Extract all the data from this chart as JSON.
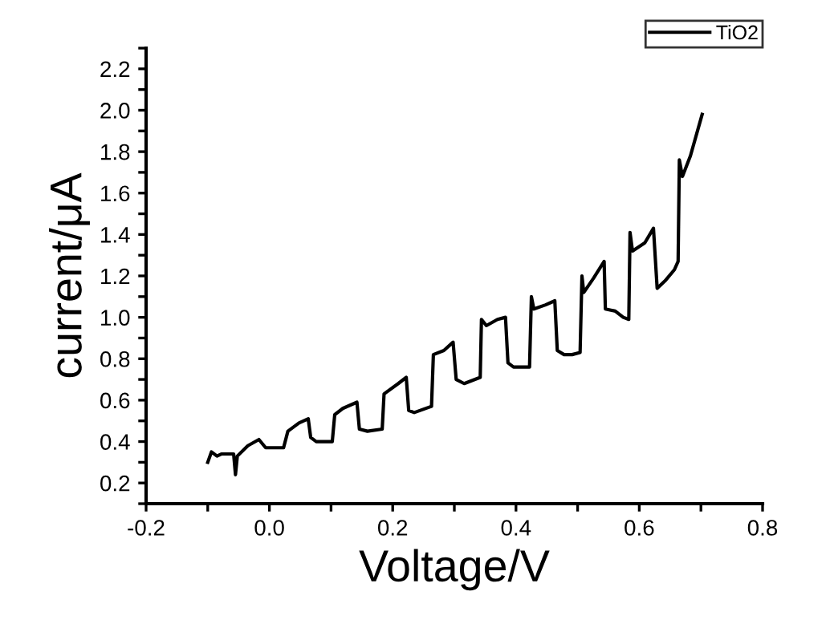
{
  "chart_data": {
    "type": "line",
    "xlabel": "Voltage/V",
    "ylabel": "current/μA",
    "xlim": [
      -0.2,
      0.8
    ],
    "ylim": [
      0.1,
      2.3
    ],
    "xticks": [
      -0.2,
      {
        "value": -0.1,
        "label": null
      },
      {
        "value": 0,
        "label": "0.0"
      },
      {
        "value": 0.1,
        "label": null
      },
      0.2,
      {
        "value": 0.3,
        "label": null
      },
      0.4,
      {
        "value": 0.5,
        "label": null
      },
      0.6,
      {
        "value": 0.7,
        "label": null
      },
      0.8
    ],
    "yticks": [
      {
        "value": 0.1,
        "label": null
      },
      0.2,
      {
        "value": 0.3,
        "label": null
      },
      0.4,
      {
        "value": 0.5,
        "label": null
      },
      0.6,
      {
        "value": 0.7,
        "label": null
      },
      0.8,
      {
        "value": 0.9,
        "label": null
      },
      {
        "value": 1,
        "label": "1.0"
      },
      {
        "value": 1.1,
        "label": null
      },
      1.2,
      {
        "value": 1.3,
        "label": null
      },
      1.4,
      {
        "value": 1.5,
        "label": null
      },
      1.6,
      {
        "value": 1.7,
        "label": null
      },
      1.8,
      {
        "value": 1.9,
        "label": null
      },
      {
        "value": 2,
        "label": "2.0"
      },
      {
        "value": 2.1,
        "label": null
      },
      2.2,
      {
        "value": 2.3,
        "label": null
      }
    ],
    "grid": false,
    "legend": "top right",
    "marker": "none",
    "line_style": "solid",
    "series": [
      {
        "name": "TiO2",
        "color": "#000000",
        "x": [
          -0.1,
          -0.094,
          -0.085,
          -0.078,
          -0.058,
          -0.055,
          -0.052,
          -0.035,
          -0.017,
          -0.006,
          0.023,
          0.03,
          0.048,
          0.063,
          0.067,
          0.076,
          0.102,
          0.106,
          0.119,
          0.142,
          0.146,
          0.159,
          0.183,
          0.186,
          0.209,
          0.222,
          0.226,
          0.235,
          0.263,
          0.266,
          0.283,
          0.298,
          0.303,
          0.316,
          0.342,
          0.344,
          0.352,
          0.37,
          0.383,
          0.387,
          0.396,
          0.422,
          0.425,
          0.429,
          0.448,
          0.463,
          0.467,
          0.478,
          0.491,
          0.504,
          0.507,
          0.51,
          0.526,
          0.543,
          0.545,
          0.561,
          0.574,
          0.583,
          0.585,
          0.589,
          0.609,
          0.623,
          0.629,
          0.643,
          0.657,
          0.663,
          0.665,
          0.67,
          0.683,
          0.702
        ],
        "values": [
          0.3,
          0.35,
          0.33,
          0.34,
          0.34,
          0.24,
          0.33,
          0.38,
          0.41,
          0.37,
          0.37,
          0.45,
          0.49,
          0.51,
          0.42,
          0.4,
          0.4,
          0.53,
          0.56,
          0.59,
          0.46,
          0.45,
          0.46,
          0.63,
          0.68,
          0.71,
          0.55,
          0.54,
          0.57,
          0.82,
          0.84,
          0.88,
          0.7,
          0.68,
          0.71,
          0.99,
          0.96,
          0.99,
          1.0,
          0.78,
          0.76,
          0.76,
          1.1,
          1.04,
          1.06,
          1.08,
          0.84,
          0.82,
          0.82,
          0.83,
          1.2,
          1.12,
          1.19,
          1.27,
          1.04,
          1.03,
          1.0,
          0.99,
          1.41,
          1.32,
          1.36,
          1.43,
          1.14,
          1.18,
          1.23,
          1.27,
          1.76,
          1.68,
          1.78,
          1.98
        ]
      }
    ]
  }
}
